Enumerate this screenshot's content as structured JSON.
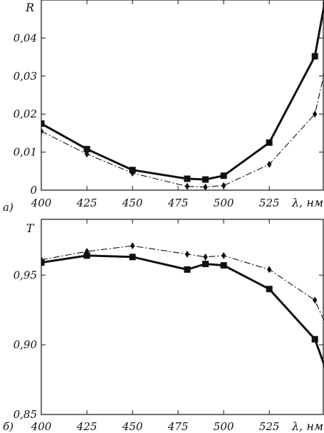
{
  "chart_data": [
    {
      "type": "line",
      "panel_label": "а)",
      "ylabel": "R",
      "xlabel": "λ, нм",
      "xlim": [
        400,
        555
      ],
      "ylim": [
        0,
        0.05
      ],
      "x_ticks": [
        "400",
        "425",
        "450",
        "475",
        "500",
        "525"
      ],
      "y_ticks": [
        "0",
        "0,01",
        "0,02",
        "0,03",
        "0,04"
      ],
      "grid": false,
      "series": [
        {
          "marker": "square",
          "line_style": "solid",
          "line_width": "thick",
          "color": "#111111",
          "x": [
            400,
            425,
            450,
            480,
            490,
            500,
            525,
            550,
            556
          ],
          "y": [
            0.0175,
            0.0108,
            0.0053,
            0.003,
            0.0028,
            0.0038,
            0.0125,
            0.0352,
            0.051
          ],
          "markers": [
            true,
            true,
            true,
            true,
            true,
            true,
            true,
            true,
            false
          ]
        },
        {
          "marker": "diamond",
          "line_style": "dash-dot",
          "line_width": "thin",
          "color": "#111111",
          "x": [
            400,
            425,
            450,
            480,
            490,
            500,
            525,
            550,
            562
          ],
          "y": [
            0.0155,
            0.0095,
            0.0045,
            0.001,
            0.0008,
            0.0012,
            0.0068,
            0.02,
            0.045
          ],
          "markers": [
            true,
            true,
            true,
            true,
            true,
            true,
            true,
            true,
            false
          ]
        }
      ]
    },
    {
      "type": "line",
      "panel_label": "б)",
      "ylabel": "T",
      "xlabel": "λ, нм",
      "xlim": [
        400,
        555
      ],
      "ylim": [
        0.85,
        0.99
      ],
      "x_ticks": [
        "400",
        "425",
        "450",
        "475",
        "500",
        "525"
      ],
      "y_ticks": [
        "0,85",
        "0,90",
        "0,95"
      ],
      "grid": false,
      "series": [
        {
          "marker": "square",
          "line_style": "solid",
          "line_width": "thick",
          "color": "#111111",
          "x": [
            400,
            425,
            450,
            480,
            490,
            500,
            525,
            550,
            565
          ],
          "y": [
            0.959,
            0.964,
            0.963,
            0.954,
            0.958,
            0.957,
            0.94,
            0.904,
            0.85
          ],
          "markers": [
            true,
            true,
            true,
            true,
            true,
            true,
            true,
            true,
            false
          ]
        },
        {
          "marker": "diamond",
          "line_style": "dash-dot",
          "line_width": "thin",
          "color": "#111111",
          "x": [
            400,
            425,
            450,
            480,
            490,
            500,
            525,
            550,
            565
          ],
          "y": [
            0.961,
            0.967,
            0.971,
            0.965,
            0.963,
            0.964,
            0.954,
            0.932,
            0.888
          ],
          "markers": [
            true,
            true,
            true,
            true,
            true,
            true,
            true,
            true,
            false
          ]
        }
      ]
    }
  ]
}
